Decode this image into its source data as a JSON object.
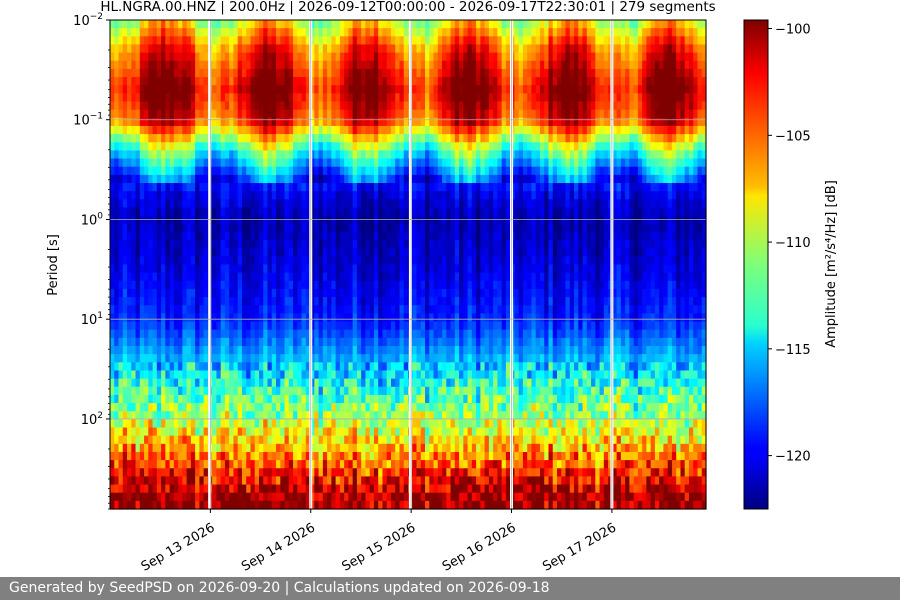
{
  "chart_data": {
    "type": "heatmap",
    "title": "HL.NGRA.00.HNZ | 200.0Hz | 2026-09-12T00:00:00 - 2026-09-17T22:30:01 | 279 segments",
    "ylabel": "Period [s]",
    "y_scale": "log",
    "y_inverted": true,
    "ylim": [
      0.01,
      800
    ],
    "y_ticks": [
      {
        "value": 0.01,
        "base": "10",
        "exp": "−2"
      },
      {
        "value": 0.1,
        "base": "10",
        "exp": "−1"
      },
      {
        "value": 1,
        "base": "10",
        "exp": "0"
      },
      {
        "value": 10,
        "base": "10",
        "exp": "1"
      },
      {
        "value": 100,
        "base": "10",
        "exp": "2"
      }
    ],
    "x_start": "2026-09-12T00:00:00",
    "x_end": "2026-09-17T22:30:01",
    "x_ticks": [
      {
        "label": "Sep 13 2026",
        "date": "2026-09-13"
      },
      {
        "label": "Sep 14 2026",
        "date": "2026-09-14"
      },
      {
        "label": "Sep 15 2026",
        "date": "2026-09-15"
      },
      {
        "label": "Sep 16 2026",
        "date": "2026-09-16"
      },
      {
        "label": "Sep 17 2026",
        "date": "2026-09-17"
      }
    ],
    "grid": true,
    "segments": 279,
    "colormap": "jet",
    "colorbar": {
      "label_text": "Amplitude [m²/s⁴/Hz] [dB]",
      "range": [
        -122.5,
        -99.6
      ],
      "ticks": [
        {
          "value": -100,
          "label": "−100"
        },
        {
          "value": -105,
          "label": "−105"
        },
        {
          "value": -110,
          "label": "−110"
        },
        {
          "value": -115,
          "label": "−115"
        },
        {
          "value": -120,
          "label": "−120"
        }
      ]
    },
    "gaps": [
      "2026-09-12T23:50:00",
      "2026-09-14T00:00:00",
      "2026-09-14T23:50:00",
      "2026-09-16T00:00:00",
      "2026-09-17T00:00:00"
    ],
    "profile_by_period": [
      {
        "period": 0.01,
        "db": -109
      },
      {
        "period": 0.02,
        "db": -104
      },
      {
        "period": 0.05,
        "db": -101
      },
      {
        "period": 0.1,
        "db": -103
      },
      {
        "period": 0.2,
        "db": -112
      },
      {
        "period": 0.5,
        "db": -120
      },
      {
        "period": 1,
        "db": -121.5
      },
      {
        "period": 3,
        "db": -120.5
      },
      {
        "period": 10,
        "db": -119
      },
      {
        "period": 30,
        "db": -115
      },
      {
        "period": 100,
        "db": -110
      },
      {
        "period": 300,
        "db": -104
      },
      {
        "period": 600,
        "db": -100
      }
    ]
  },
  "footer": {
    "text": "Generated by SeedPSD on 2026-09-20 | Calculations updated on 2026-09-18"
  }
}
